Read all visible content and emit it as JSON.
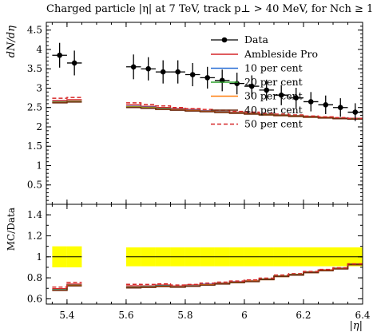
{
  "chart_data": {
    "type": "line",
    "title": "Charged particle |η| at 7 TeV, track p⊥ > 40 MeV, for Nch ≥ 1",
    "xlabel": "|η|",
    "ylabel_main": "dN/dη",
    "ylabel_ratio": "MC/Data",
    "xlim": [
      5.33,
      6.4
    ],
    "ylim_main": [
      0,
      4.7
    ],
    "ylim_ratio": [
      0.55,
      1.5
    ],
    "x_ticks": [
      5.4,
      5.6,
      5.8,
      6.0,
      6.2,
      6.4
    ],
    "x_tick_labels": [
      "5.4",
      "5.6",
      "5.8",
      "6",
      "6.2",
      "6.4"
    ],
    "y_ticks_main": [
      0.5,
      1,
      1.5,
      2,
      2.5,
      3,
      3.5,
      4,
      4.5
    ],
    "y_tick_labels_main": [
      "0.5",
      "1",
      "1.5",
      "2",
      "2.5",
      "3",
      "3.5",
      "4",
      "4.5"
    ],
    "y_ticks_ratio": [
      0.6,
      0.8,
      1,
      1.2,
      1.4
    ],
    "y_tick_labels_ratio": [
      "0.6",
      "0.8",
      "1",
      "1.2",
      "1.4"
    ],
    "legend_position": "top-right",
    "data": {
      "name": "Data",
      "color": "#000000",
      "x": [
        5.375,
        5.425,
        5.625,
        5.675,
        5.725,
        5.775,
        5.825,
        5.875,
        5.925,
        5.975,
        6.025,
        6.075,
        6.125,
        6.175,
        6.225,
        6.275,
        6.325,
        6.375
      ],
      "y": [
        3.85,
        3.65,
        3.55,
        3.5,
        3.42,
        3.42,
        3.35,
        3.27,
        3.2,
        3.12,
        3.05,
        2.95,
        2.82,
        2.75,
        2.65,
        2.57,
        2.5,
        2.38
      ],
      "err": [
        0.32,
        0.32,
        0.32,
        0.3,
        0.3,
        0.3,
        0.3,
        0.28,
        0.28,
        0.28,
        0.28,
        0.27,
        0.26,
        0.26,
        0.25,
        0.24,
        0.24,
        0.23
      ]
    },
    "bin_edges": [
      5.35,
      5.4,
      5.45,
      5.6,
      5.65,
      5.7,
      5.75,
      5.8,
      5.85,
      5.9,
      5.95,
      6.0,
      6.05,
      6.1,
      6.15,
      6.2,
      6.25,
      6.3,
      6.35,
      6.4
    ],
    "empty_bin_after": 1,
    "series": [
      {
        "name": "Ambleside Pro",
        "color": "#d62728",
        "dash": false,
        "values": [
          2.68,
          2.7,
          2.57,
          2.53,
          2.5,
          2.47,
          2.45,
          2.42,
          2.4,
          2.38,
          2.36,
          2.33,
          2.31,
          2.29,
          2.27,
          2.25,
          2.23,
          2.22
        ]
      },
      {
        "name": "10 per cent",
        "color": "#2a6fd6",
        "dash": false,
        "values": [
          2.65,
          2.66,
          2.53,
          2.51,
          2.48,
          2.45,
          2.43,
          2.41,
          2.39,
          2.37,
          2.35,
          2.32,
          2.3,
          2.28,
          2.26,
          2.24,
          2.23,
          2.21
        ]
      },
      {
        "name": "20 per cent",
        "color": "#2ca02c",
        "dash": false,
        "values": [
          2.64,
          2.66,
          2.52,
          2.5,
          2.47,
          2.44,
          2.42,
          2.4,
          2.38,
          2.36,
          2.34,
          2.32,
          2.3,
          2.28,
          2.26,
          2.24,
          2.22,
          2.21
        ]
      },
      {
        "name": "30 per cent",
        "color": "#ff7f0e",
        "dash": false,
        "values": [
          2.63,
          2.65,
          2.51,
          2.49,
          2.46,
          2.44,
          2.42,
          2.4,
          2.38,
          2.36,
          2.34,
          2.31,
          2.29,
          2.27,
          2.25,
          2.24,
          2.22,
          2.2
        ]
      },
      {
        "name": "40 per cent",
        "color": "#6b2a10",
        "dash": false,
        "values": [
          2.62,
          2.64,
          2.5,
          2.48,
          2.45,
          2.43,
          2.41,
          2.39,
          2.37,
          2.35,
          2.33,
          2.31,
          2.29,
          2.27,
          2.25,
          2.23,
          2.21,
          2.2
        ]
      },
      {
        "name": "50 per cent",
        "color": "#d62728",
        "dash": true,
        "values": [
          2.74,
          2.76,
          2.62,
          2.58,
          2.54,
          2.5,
          2.47,
          2.45,
          2.43,
          2.4,
          2.38,
          2.35,
          2.33,
          2.31,
          2.28,
          2.26,
          2.24,
          2.22
        ]
      }
    ],
    "uncertainty_band": {
      "color": "#ffff00",
      "low": [
        0.9,
        0.9,
        0.91,
        0.91,
        0.91,
        0.91,
        0.91,
        0.91,
        0.91,
        0.91,
        0.91,
        0.91,
        0.91,
        0.91,
        0.91,
        0.91,
        0.91,
        0.91
      ],
      "high": [
        1.1,
        1.1,
        1.09,
        1.09,
        1.09,
        1.09,
        1.09,
        1.09,
        1.09,
        1.09,
        1.09,
        1.09,
        1.09,
        1.09,
        1.09,
        1.09,
        1.09,
        1.09
      ]
    }
  }
}
